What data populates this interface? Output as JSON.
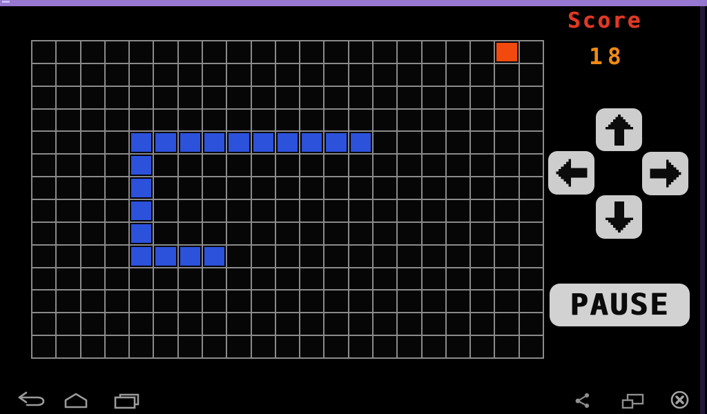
{
  "window": {
    "top_bar_color": "#9678d1",
    "top_bar_highlight_color": "#cbbdf2",
    "right_border_color": "#241839",
    "background_color": "#000000"
  },
  "score_panel": {
    "label": "Score",
    "value": "18",
    "label_color": "#de3a26",
    "value_color": "#ef8a15"
  },
  "board": {
    "rows": 14,
    "cols": 21,
    "grid_line_color": "#8b8b8b",
    "cell_color": "#060606",
    "snake_color": "#2c51db",
    "food_color": "#f2490f",
    "segment_border_color": "#020208",
    "snake_cells": [
      [
        4,
        4
      ],
      [
        4,
        5
      ],
      [
        4,
        6
      ],
      [
        4,
        7
      ],
      [
        4,
        8
      ],
      [
        4,
        9
      ],
      [
        4,
        10
      ],
      [
        4,
        11
      ],
      [
        4,
        12
      ],
      [
        4,
        13
      ],
      [
        5,
        4
      ],
      [
        6,
        4
      ],
      [
        7,
        4
      ],
      [
        8,
        4
      ],
      [
        9,
        4
      ],
      [
        9,
        5
      ],
      [
        9,
        6
      ],
      [
        9,
        7
      ]
    ],
    "food_cell": [
      0,
      19
    ]
  },
  "dpad": {
    "button_color": "#cdcdcd",
    "arrow_color": "#0b0b0b",
    "buttons": [
      {
        "direction": "up",
        "icon": "up-arrow-icon"
      },
      {
        "direction": "left",
        "icon": "left-arrow-icon"
      },
      {
        "direction": "right",
        "icon": "right-arrow-icon"
      },
      {
        "direction": "down",
        "icon": "down-arrow-icon"
      }
    ]
  },
  "pause_button": {
    "label": "PAUSE",
    "background_color": "#d2d2d2",
    "text_color": "#0b0b0b"
  },
  "nav_bar": {
    "icon_color": "#9b9b9b",
    "left_icons": [
      "back-icon",
      "home-icon",
      "recents-icon"
    ],
    "right_icons": [
      "share-icon",
      "screen-switch-icon",
      "close-icon"
    ]
  }
}
